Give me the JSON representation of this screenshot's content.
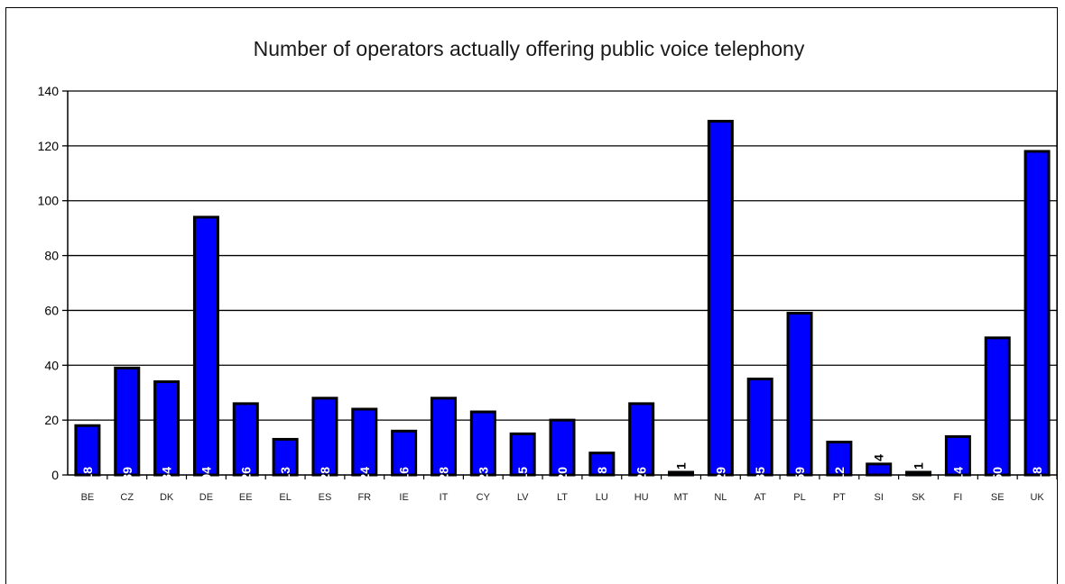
{
  "chart_data": {
    "type": "bar",
    "title": "Number of operators actually offering public voice telephony",
    "xlabel": "",
    "ylabel": "",
    "ylim": [
      0,
      140
    ],
    "yticks": [
      0,
      20,
      40,
      60,
      80,
      100,
      120,
      140
    ],
    "grid": true,
    "bar_color": "#0000ff",
    "categories": [
      "BE",
      "CZ",
      "DK",
      "DE",
      "EE",
      "EL",
      "ES",
      "FR",
      "IE",
      "IT",
      "CY",
      "LV",
      "LT",
      "LU",
      "HU",
      "MT",
      "NL",
      "AT",
      "PL",
      "PT",
      "SI",
      "SK",
      "FI",
      "SE",
      "UK"
    ],
    "values": [
      18,
      39,
      34,
      94,
      26,
      13,
      28,
      24,
      16,
      28,
      23,
      15,
      20,
      8,
      26,
      1,
      129,
      35,
      59,
      12,
      4,
      1,
      14,
      50,
      118
    ]
  }
}
